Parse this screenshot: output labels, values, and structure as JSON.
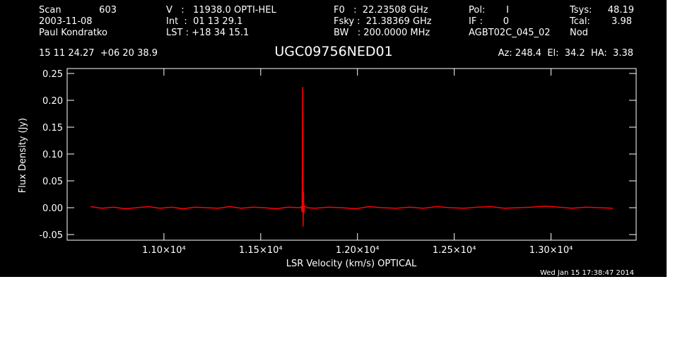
{
  "header": {
    "rows": [
      [
        "Scan",
        "603",
        "V   :   11938.0 OPTI-HEL",
        "F0   :  22.23508 GHz",
        "Pol:",
        "I",
        "Tsys:",
        "48.19"
      ],
      [
        "2003-11-08",
        "Int  :  01 13 29.1",
        "Fsky :  21.38369 GHz",
        "IF :",
        "0",
        "Tcal:",
        "3.98"
      ],
      [
        "Paul Kondratko",
        "LST : +18 34 15.1",
        "BW   : 200.0000 MHz",
        "AGBT02C_045_02",
        "Nod"
      ]
    ],
    "position": "15 11 24.27  +06 20 38.9",
    "pointing": "Az: 248.4  El:  34.2  HA:  3.38",
    "timestamp": "Wed Jan 15 17:38:47 2014"
  },
  "chart_data": {
    "type": "line",
    "title": "UGC09756NED01",
    "x_label": "LSR Velocity (km/s) OPTICAL",
    "y_label": "Flux Density (Jy)",
    "color": "#ff0000",
    "x": [
      10620,
      10680,
      10740,
      10800,
      10860,
      10920,
      10980,
      11040,
      11100,
      11160,
      11220,
      11280,
      11340,
      11400,
      11460,
      11520,
      11580,
      11640,
      11700,
      11710,
      11714,
      11717,
      11719,
      11721,
      11723,
      11726,
      11740,
      11780,
      11850,
      11920,
      11990,
      12060,
      12130,
      12200,
      12270,
      12340,
      12410,
      12480,
      12550,
      12620,
      12690,
      12760,
      12830,
      12900,
      12970,
      13040,
      13110,
      13180,
      13250,
      13320
    ],
    "values": [
      0.002,
      -0.001,
      0.001,
      -0.002,
      0.0,
      0.002,
      -0.001,
      0.001,
      -0.002,
      0.001,
      0.0,
      -0.001,
      0.002,
      -0.001,
      0.001,
      0.0,
      -0.002,
      0.001,
      0.0,
      0.002,
      -0.008,
      0.225,
      -0.035,
      0.03,
      -0.01,
      0.003,
      0.0,
      -0.001,
      0.001,
      0.0,
      -0.002,
      0.002,
      0.0,
      -0.001,
      0.001,
      -0.001,
      0.002,
      0.0,
      -0.001,
      0.001,
      0.002,
      -0.001,
      0.0,
      0.001,
      0.003,
      0.001,
      -0.001,
      0.001,
      0.0,
      -0.001
    ],
    "xlim": [
      10500,
      13440
    ],
    "ylim": [
      -0.0605,
      0.2592
    ],
    "xticks": [
      {
        "value": 11000,
        "label": "1.10×10⁴"
      },
      {
        "value": 11500,
        "label": "1.15×10⁴"
      },
      {
        "value": 12000,
        "label": "1.20×10⁴"
      },
      {
        "value": 12500,
        "label": "1.25×10⁴"
      },
      {
        "value": 13000,
        "label": "1.30×10⁴"
      }
    ],
    "yticks": [
      {
        "value": -0.05,
        "label": "-0.05"
      },
      {
        "value": 0,
        "label": "0.00"
      },
      {
        "value": 0.05,
        "label": "0.05"
      },
      {
        "value": 0.1,
        "label": "0.10"
      },
      {
        "value": 0.15,
        "label": "0.15"
      },
      {
        "value": 0.2,
        "label": "0.20"
      },
      {
        "value": 0.25,
        "label": "0.25"
      }
    ]
  }
}
